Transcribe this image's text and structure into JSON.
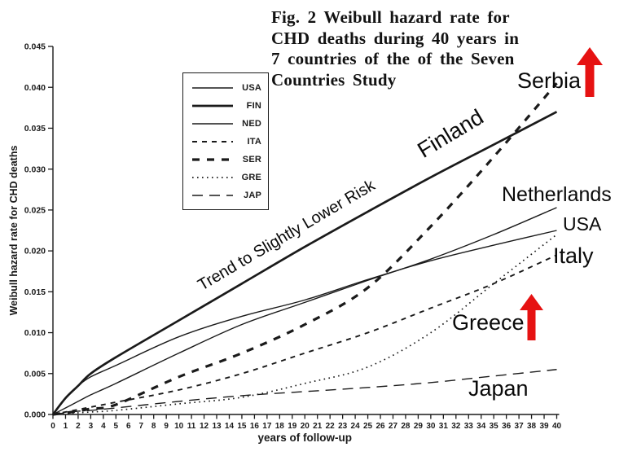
{
  "figure": {
    "caption": {
      "lines": [
        "Fig. 2  Weibull hazard rate for",
        "CHD deaths during 40 years in",
        "7 countries of the of the Seven",
        "Countries Study"
      ]
    }
  },
  "chart_data": {
    "type": "line",
    "title": "Fig. 2 Weibull hazard rate for CHD deaths during 40 years in 7 countries of the of the Seven Countries Study",
    "xlabel": "years of follow-up",
    "ylabel": "Weibull hazard rate for CHD deaths",
    "xlim": [
      0,
      40
    ],
    "ylim": [
      0,
      0.045
    ],
    "grid": false,
    "legend_position": "upper-left-inside",
    "xticks": [
      0,
      1,
      2,
      3,
      4,
      5,
      6,
      7,
      8,
      9,
      10,
      11,
      12,
      13,
      14,
      15,
      16,
      17,
      18,
      19,
      20,
      21,
      22,
      23,
      24,
      25,
      26,
      27,
      28,
      29,
      30,
      31,
      32,
      33,
      34,
      35,
      36,
      37,
      38,
      39,
      40
    ],
    "ytick_labels": [
      "0.000",
      "0.005",
      "0.010",
      "0.015",
      "0.020",
      "0.025",
      "0.030",
      "0.035",
      "0.040",
      "0.045"
    ],
    "yticks": [
      0,
      0.005,
      0.01,
      0.015,
      0.02,
      0.025,
      0.03,
      0.035,
      0.04,
      0.045
    ],
    "x": [
      0,
      1,
      2,
      3,
      5,
      10,
      15,
      20,
      25,
      30,
      35,
      40
    ],
    "series": [
      {
        "name": "USA",
        "legend_label": "USA",
        "style": "solid-thin",
        "values": [
          0,
          0.002,
          0.0035,
          0.0046,
          0.006,
          0.0095,
          0.012,
          0.014,
          0.0165,
          0.0188,
          0.0207,
          0.0225
        ]
      },
      {
        "name": "FIN",
        "legend_label": "FIN",
        "style": "solid-thick",
        "values": [
          0,
          0.002,
          0.0035,
          0.005,
          0.007,
          0.0115,
          0.016,
          0.0205,
          0.0248,
          0.029,
          0.033,
          0.037
        ]
      },
      {
        "name": "NED",
        "legend_label": "NED",
        "style": "solid-thin",
        "values": [
          0,
          0.0008,
          0.0016,
          0.0024,
          0.0038,
          0.0075,
          0.011,
          0.0137,
          0.0164,
          0.019,
          0.022,
          0.0253
        ]
      },
      {
        "name": "ITA",
        "legend_label": "ITA",
        "style": "dash-medium",
        "values": [
          0,
          0.0003,
          0.0006,
          0.0009,
          0.0015,
          0.003,
          0.005,
          0.0075,
          0.01,
          0.013,
          0.016,
          0.0195
        ]
      },
      {
        "name": "SER",
        "legend_label": "SER",
        "style": "dash-thick",
        "values": [
          0,
          0.0002,
          0.0004,
          0.0007,
          0.0012,
          0.0046,
          0.0075,
          0.011,
          0.0155,
          0.023,
          0.0315,
          0.0405
        ]
      },
      {
        "name": "GRE",
        "legend_label": "GRE",
        "style": "dotted",
        "values": [
          0,
          0.0001,
          0.0002,
          0.0003,
          0.0005,
          0.0013,
          0.0021,
          0.0038,
          0.0058,
          0.01,
          0.016,
          0.022
        ]
      },
      {
        "name": "JAP",
        "legend_label": "JAP",
        "style": "dash-long",
        "values": [
          0,
          0.0002,
          0.0004,
          0.0005,
          0.0008,
          0.0016,
          0.0023,
          0.0028,
          0.0033,
          0.0039,
          0.0047,
          0.0055
        ]
      }
    ]
  },
  "annotations": {
    "trend_label": "Trend to Slightly Lower  Risk",
    "country_labels": {
      "serbia": "Serbia",
      "finland": "Finland",
      "netherlands": "Netherlands",
      "usa": "USA",
      "italy": "Italy",
      "greece": "Greece",
      "japan": "Japan"
    },
    "arrows": [
      {
        "at": "serbia",
        "direction": "up"
      },
      {
        "at": "greece",
        "direction": "up"
      }
    ]
  },
  "colors": {
    "line": "#1a1a1a",
    "text": "#0a0a0a",
    "arrow_red": "#e61212",
    "background": "#ffffff"
  }
}
